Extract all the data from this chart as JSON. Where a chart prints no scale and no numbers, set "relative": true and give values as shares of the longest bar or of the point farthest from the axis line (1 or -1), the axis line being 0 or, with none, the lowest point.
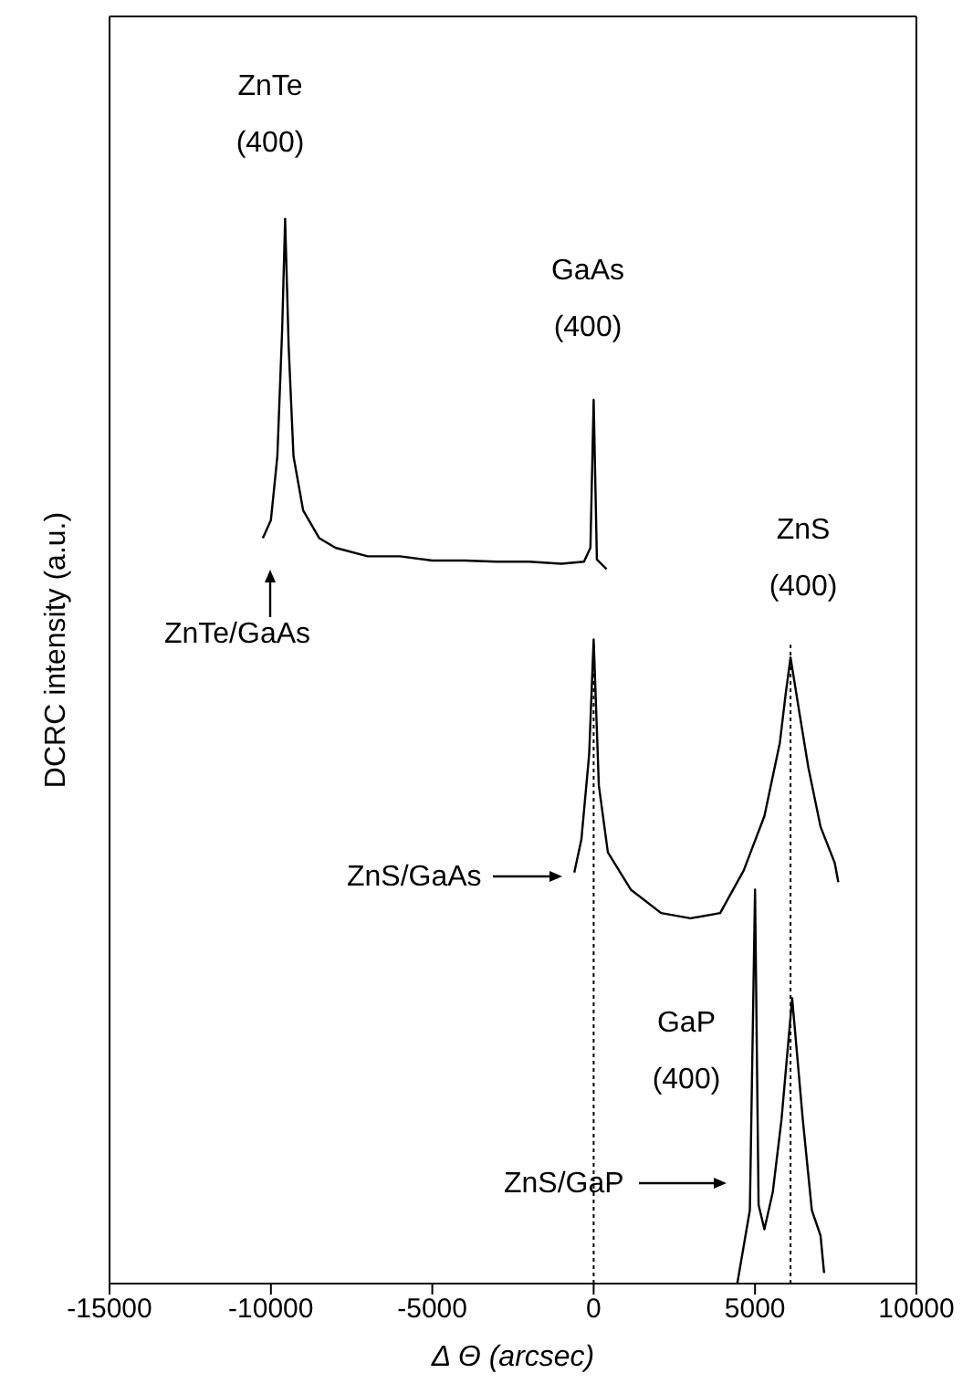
{
  "chart_data": {
    "type": "line",
    "relative": true,
    "xlabel": "Δ Θ (arcsec)",
    "ylabel": "DCRC intensity (a.u.)",
    "xlim": [
      -15000,
      10000
    ],
    "xticks": [
      -15000,
      -10000,
      -5000,
      0,
      5000,
      10000
    ],
    "legend": "left",
    "marker": "none",
    "line_style": "solid",
    "annotations": [
      "ZnTe (400)",
      "GaAs (400)",
      "ZnS (400)",
      "GaP (400)"
    ],
    "ref_lines": [
      {
        "axis": "x",
        "value": 0,
        "line_style": "dotted",
        "color": "#000000"
      },
      {
        "axis": "x",
        "value": 6100,
        "line_style": "dotted",
        "color": "#000000"
      }
    ],
    "series": [
      {
        "name": "ZnTe/GaAs",
        "color": "#000000",
        "x": [
          -10250,
          -10000,
          -9800,
          -9650,
          -9560,
          -9450,
          -9300,
          -9000,
          -8500,
          -8000,
          -7000,
          -6000,
          -5000,
          -4000,
          -3000,
          -2000,
          -1000,
          -300,
          -100,
          0,
          100,
          400
        ],
        "values": [
          0.7,
          0.717,
          0.777,
          0.897,
          1.0,
          0.88,
          0.777,
          0.726,
          0.7,
          0.691,
          0.683,
          0.683,
          0.679,
          0.679,
          0.678,
          0.678,
          0.676,
          0.678,
          0.691,
          0.83,
          0.68,
          0.671
        ]
      },
      {
        "name": "ZnS/GaAs",
        "color": "#000000",
        "x": [
          -600,
          -380,
          -140,
          0,
          160,
          440,
          1150,
          2090,
          3000,
          3920,
          4650,
          5290,
          5770,
          5950,
          6100,
          6370,
          6650,
          7030,
          7470,
          7580
        ],
        "values": [
          0.386,
          0.417,
          0.497,
          0.605,
          0.468,
          0.405,
          0.37,
          0.348,
          0.343,
          0.348,
          0.388,
          0.439,
          0.508,
          0.554,
          0.588,
          0.537,
          0.485,
          0.429,
          0.395,
          0.377
        ]
      },
      {
        "name": "ZnS/GaP",
        "color": "#000000",
        "x": [
          4450,
          4670,
          4840,
          5000,
          5110,
          5290,
          5550,
          5820,
          6150,
          6480,
          6760,
          7030,
          7140
        ],
        "values": [
          0,
          0.039,
          0.069,
          0.37,
          0.074,
          0.051,
          0.086,
          0.154,
          0.268,
          0.154,
          0.069,
          0.045,
          0.01
        ]
      }
    ]
  }
}
